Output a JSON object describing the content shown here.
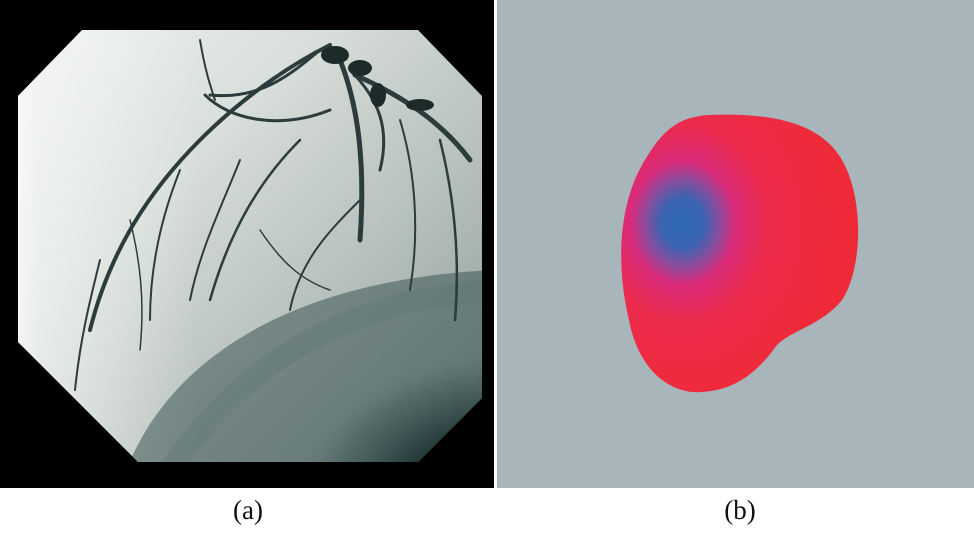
{
  "figure": {
    "panels": [
      {
        "id": "a",
        "label": "(a)",
        "content": "coronary-angiogram-xray"
      },
      {
        "id": "b",
        "label": "(b)",
        "content": "cardiac-perfusion-map"
      }
    ],
    "colors": {
      "angio_background": "#000000",
      "map_background": "#a8b5ba",
      "map_red": "#ef2a38",
      "map_blue": "#2f6bb8",
      "map_magenta": "#d92b7a"
    }
  }
}
